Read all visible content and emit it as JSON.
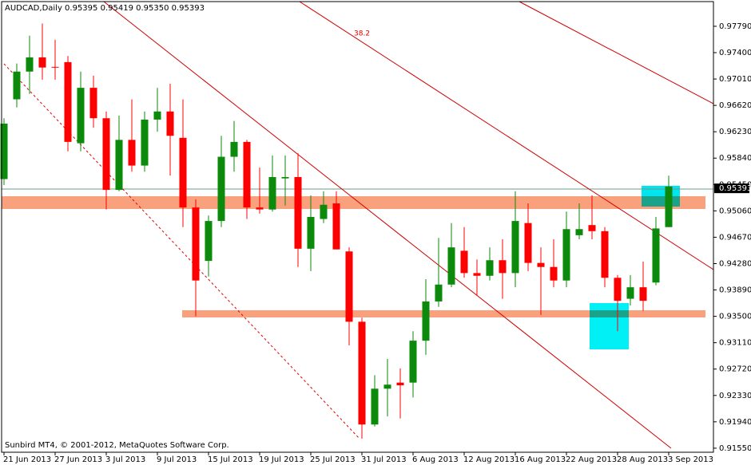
{
  "chart_data": {
    "type": "candlestick",
    "title": "AUDCAD,Daily  0.95395 0.95419 0.95350 0.95393",
    "footer": "Sunbird MT4, © 2001-2012, MetaQuotes Software Corp.",
    "annotation": "38.2",
    "categories": [
      "21 Jun 2013",
      null,
      null,
      null,
      "27 Jun 2013",
      null,
      null,
      null,
      "3 Jul 2013",
      null,
      null,
      null,
      "9 Jul 2013",
      null,
      null,
      null,
      "15 Jul 2013",
      null,
      null,
      null,
      "19 Jul 2013",
      null,
      null,
      null,
      "25 Jul 2013",
      null,
      null,
      null,
      "31 Jul 2013",
      null,
      null,
      null,
      "6 Aug 2013",
      null,
      null,
      null,
      "12 Aug 2013",
      null,
      null,
      null,
      "16 Aug 2013",
      null,
      null,
      null,
      "22 Aug 2013",
      null,
      null,
      null,
      "28 Aug 2013",
      null,
      null,
      null,
      "3 Sep 2013"
    ],
    "open": [
      0.9553,
      0.9671,
      0.9712,
      0.9733,
      0.9719,
      0.9726,
      0.9606,
      0.9688,
      0.9643,
      0.9537,
      0.9611,
      0.9573,
      0.9641,
      0.9653,
      0.9614,
      0.9511,
      0.9432,
      0.9491,
      0.9586,
      0.9608,
      0.9511,
      0.9508,
      0.9554,
      0.9556,
      0.945,
      0.9494,
      0.9517,
      0.9446,
      0.9342,
      0.919,
      0.9243,
      0.9252,
      0.9252,
      0.9314,
      0.9372,
      0.9397,
      0.9447,
      0.9414,
      0.941,
      0.9433,
      0.9414,
      0.9488,
      0.9429,
      0.9423,
      0.9403,
      0.947,
      0.9485,
      0.9476,
      0.9407,
      0.9376,
      0.9393,
      0.94,
      0.9482
    ],
    "high": [
      0.9643,
      0.9724,
      0.9765,
      0.9783,
      0.9759,
      0.9735,
      0.9712,
      0.9706,
      0.9653,
      0.9647,
      0.9671,
      0.9653,
      0.9688,
      0.9694,
      0.9671,
      0.9523,
      0.9499,
      0.9617,
      0.9639,
      0.9611,
      0.957,
      0.9588,
      0.9588,
      0.9591,
      0.9529,
      0.9535,
      0.9535,
      0.9452,
      0.9348,
      0.9263,
      0.9287,
      0.9273,
      0.9328,
      0.9405,
      0.9466,
      0.9488,
      0.9482,
      0.9434,
      0.9452,
      0.9464,
      0.9535,
      0.9517,
      0.9452,
      0.9464,
      0.9505,
      0.9517,
      0.9529,
      0.9482,
      0.9411,
      0.9411,
      0.9431,
      0.9497,
      0.9558
    ],
    "low": [
      0.9544,
      0.9659,
      0.9679,
      0.97,
      0.97,
      0.9594,
      0.9594,
      0.9629,
      0.9508,
      0.9535,
      0.9564,
      0.9564,
      0.9623,
      0.9558,
      0.9482,
      0.935,
      0.9409,
      0.9482,
      0.9564,
      0.9494,
      0.9502,
      0.9505,
      0.9514,
      0.9423,
      0.9417,
      0.9488,
      0.9449,
      0.9307,
      0.9169,
      0.9187,
      0.9202,
      0.9199,
      0.923,
      0.9293,
      0.9364,
      0.9393,
      0.9407,
      0.9381,
      0.9403,
      0.9376,
      0.9393,
      0.9417,
      0.9352,
      0.9393,
      0.9393,
      0.9464,
      0.9464,
      0.9393,
      0.9328,
      0.9366,
      0.9358,
      0.9396,
      0.9482
    ],
    "close": [
      0.9635,
      0.9712,
      0.9733,
      0.9718,
      0.9718,
      0.9608,
      0.9688,
      0.9643,
      0.9537,
      0.9611,
      0.9573,
      0.9641,
      0.9653,
      0.9617,
      0.9511,
      0.9403,
      0.9491,
      0.9586,
      0.9608,
      0.9511,
      0.9508,
      0.9556,
      0.9556,
      0.945,
      0.9497,
      0.9515,
      0.9449,
      0.9342,
      0.919,
      0.9243,
      0.9249,
      0.9248,
      0.9314,
      0.9372,
      0.9397,
      0.9452,
      0.9414,
      0.941,
      0.9433,
      0.9414,
      0.9491,
      0.9429,
      0.9423,
      0.9403,
      0.9479,
      0.9479,
      0.9476,
      0.9407,
      0.9373,
      0.9393,
      0.9373,
      0.948,
      0.9542
    ],
    "up_color": "#0b8a0b",
    "down_color": "#ff0000",
    "last_price": {
      "value": 0.95393,
      "label": "0.95393"
    },
    "ylim": [
      0.9149,
      0.98155
    ],
    "yticks": [
      {
        "value": 0.9779,
        "label": "0.97790"
      },
      {
        "value": 0.974,
        "label": "0.97400"
      },
      {
        "value": 0.9701,
        "label": "0.97010"
      },
      {
        "value": 0.9662,
        "label": "0.96620"
      },
      {
        "value": 0.9623,
        "label": "0.96230"
      },
      {
        "value": 0.9584,
        "label": "0.95840"
      },
      {
        "value": 0.9545,
        "label": "0.95450"
      },
      {
        "value": 0.9506,
        "label": "0.95060"
      },
      {
        "value": 0.9467,
        "label": "0.94670"
      },
      {
        "value": 0.9428,
        "label": "0.94280"
      },
      {
        "value": 0.9389,
        "label": "0.93890"
      },
      {
        "value": 0.935,
        "label": "0.93500"
      },
      {
        "value": 0.9311,
        "label": "0.93110"
      },
      {
        "value": 0.9272,
        "label": "0.92720"
      },
      {
        "value": 0.9233,
        "label": "0.92330"
      },
      {
        "value": 0.9194,
        "label": "0.91940"
      },
      {
        "value": 0.9155,
        "label": "0.91550"
      }
    ]
  }
}
